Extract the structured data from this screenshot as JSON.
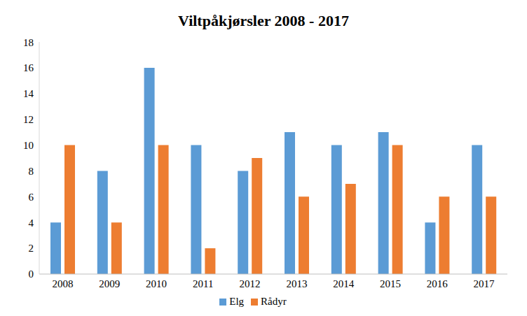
{
  "chart_data": {
    "type": "bar",
    "title": "Viltpåkjørsler 2008 - 2017",
    "categories": [
      "2008",
      "2009",
      "2010",
      "2011",
      "2012",
      "2013",
      "2014",
      "2015",
      "2016",
      "2017"
    ],
    "series": [
      {
        "name": "Elg",
        "color": "#5b9bd5",
        "values": [
          4,
          8,
          16,
          10,
          8,
          11,
          10,
          11,
          4,
          10
        ]
      },
      {
        "name": "Rådyr",
        "color": "#ed7d31",
        "values": [
          10,
          4,
          10,
          2,
          9,
          6,
          7,
          10,
          6,
          6
        ]
      }
    ],
    "ylim": [
      0,
      18
    ],
    "yticks": [
      0,
      2,
      4,
      6,
      8,
      10,
      12,
      14,
      16,
      18
    ],
    "grid": false,
    "legend": "bottom"
  }
}
